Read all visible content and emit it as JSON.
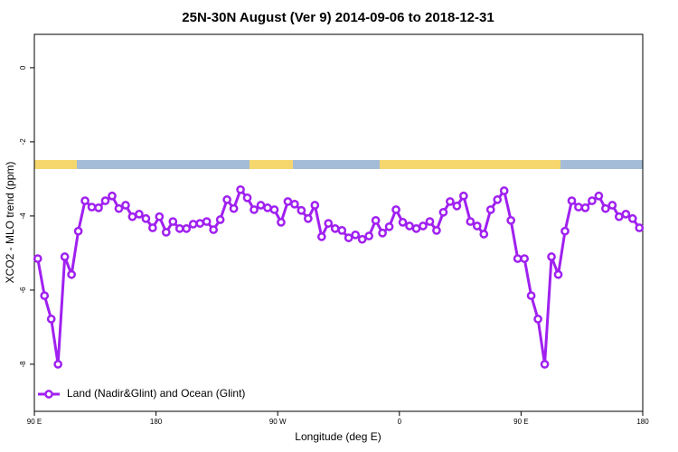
{
  "chart_data": {
    "type": "line",
    "title": "25N-30N August (Ver 9)   2014-09-06 to 2018-12-31",
    "xlabel": "Longitude (deg E)",
    "ylabel": "XCO2 - MLO trend (ppm)",
    "xlim": [
      90,
      540
    ],
    "ylim": [
      -9.27,
      0.9
    ],
    "xticks": [
      {
        "value": 90,
        "label": "90 E"
      },
      180,
      {
        "value": 270,
        "label": "90 W"
      },
      {
        "value": 360,
        "label": "0"
      },
      {
        "value": 450,
        "label": "90 E"
      },
      {
        "value": 540,
        "label": "180"
      }
    ],
    "yticks": [
      0,
      -2,
      -4,
      -6,
      -8
    ],
    "legend": "bottomleft",
    "x": [
      92.5,
      97.5,
      102.5,
      107.5,
      112.5,
      117.5,
      122.5,
      127.5,
      132.5,
      137.5,
      142.5,
      147.5,
      152.5,
      157.5,
      162.5,
      167.5,
      172.5,
      177.5,
      182.5,
      187.5,
      192.5,
      197.5,
      202.5,
      207.5,
      212.5,
      217.5,
      222.5,
      227.5,
      232.5,
      237.5,
      242.5,
      247.5,
      252.5,
      257.5,
      262.5,
      267.5,
      272.5,
      277.5,
      282.5,
      287.5,
      292.5,
      297.5,
      302.5,
      307.5,
      312.5,
      317.5,
      322.5,
      327.5,
      332.5,
      337.5,
      342.5,
      347.5,
      352.5,
      357.5,
      362.5,
      367.5,
      372.5,
      377.5,
      382.5,
      387.5,
      392.5,
      397.5,
      402.5,
      407.5,
      412.5,
      417.5,
      422.5,
      427.5,
      432.5,
      437.5,
      442.5,
      447.5,
      452.5,
      457.5,
      462.5,
      467.5,
      472.5,
      477.5,
      482.5,
      487.5,
      492.5,
      497.5,
      502.5,
      507.5,
      512.5,
      517.5,
      522.5,
      527.5,
      532.5,
      537.5
    ],
    "series": [
      {
        "name": "Land (Nadir&Glint) and Ocean (Glint)",
        "color": "#a020f0",
        "values": [
          -5.15,
          -6.15,
          -6.78,
          -8.0,
          -5.1,
          -5.58,
          -4.41,
          -3.59,
          -3.76,
          -3.78,
          -3.59,
          -3.46,
          -3.8,
          -3.71,
          -4.02,
          -3.95,
          -4.07,
          -4.32,
          -4.02,
          -4.44,
          -4.15,
          -4.34,
          -4.34,
          -4.22,
          -4.2,
          -4.15,
          -4.37,
          -4.1,
          -3.56,
          -3.8,
          -3.29,
          -3.51,
          -3.83,
          -3.71,
          -3.78,
          -3.83,
          -4.17,
          -3.61,
          -3.68,
          -3.85,
          -4.07,
          -3.71,
          -4.56,
          -4.2,
          -4.34,
          -4.39,
          -4.59,
          -4.51,
          -4.63,
          -4.54,
          -4.12,
          -4.46,
          -4.29,
          -3.83,
          -4.17,
          -4.27,
          -4.34,
          -4.27,
          -4.15,
          -4.39,
          -3.9,
          -3.61,
          -3.73,
          -3.46,
          -4.15,
          -4.27,
          -4.49,
          -3.83,
          -3.56,
          -3.32,
          -4.12,
          -5.15,
          -5.15,
          -6.15,
          -6.78,
          -8.0,
          -5.1,
          -5.58,
          -4.41,
          -3.59,
          -3.76,
          -3.78,
          -3.59,
          -3.46,
          -3.8,
          -3.71,
          -4.02,
          -3.95,
          -4.07,
          -4.32
        ]
      }
    ]
  }
}
